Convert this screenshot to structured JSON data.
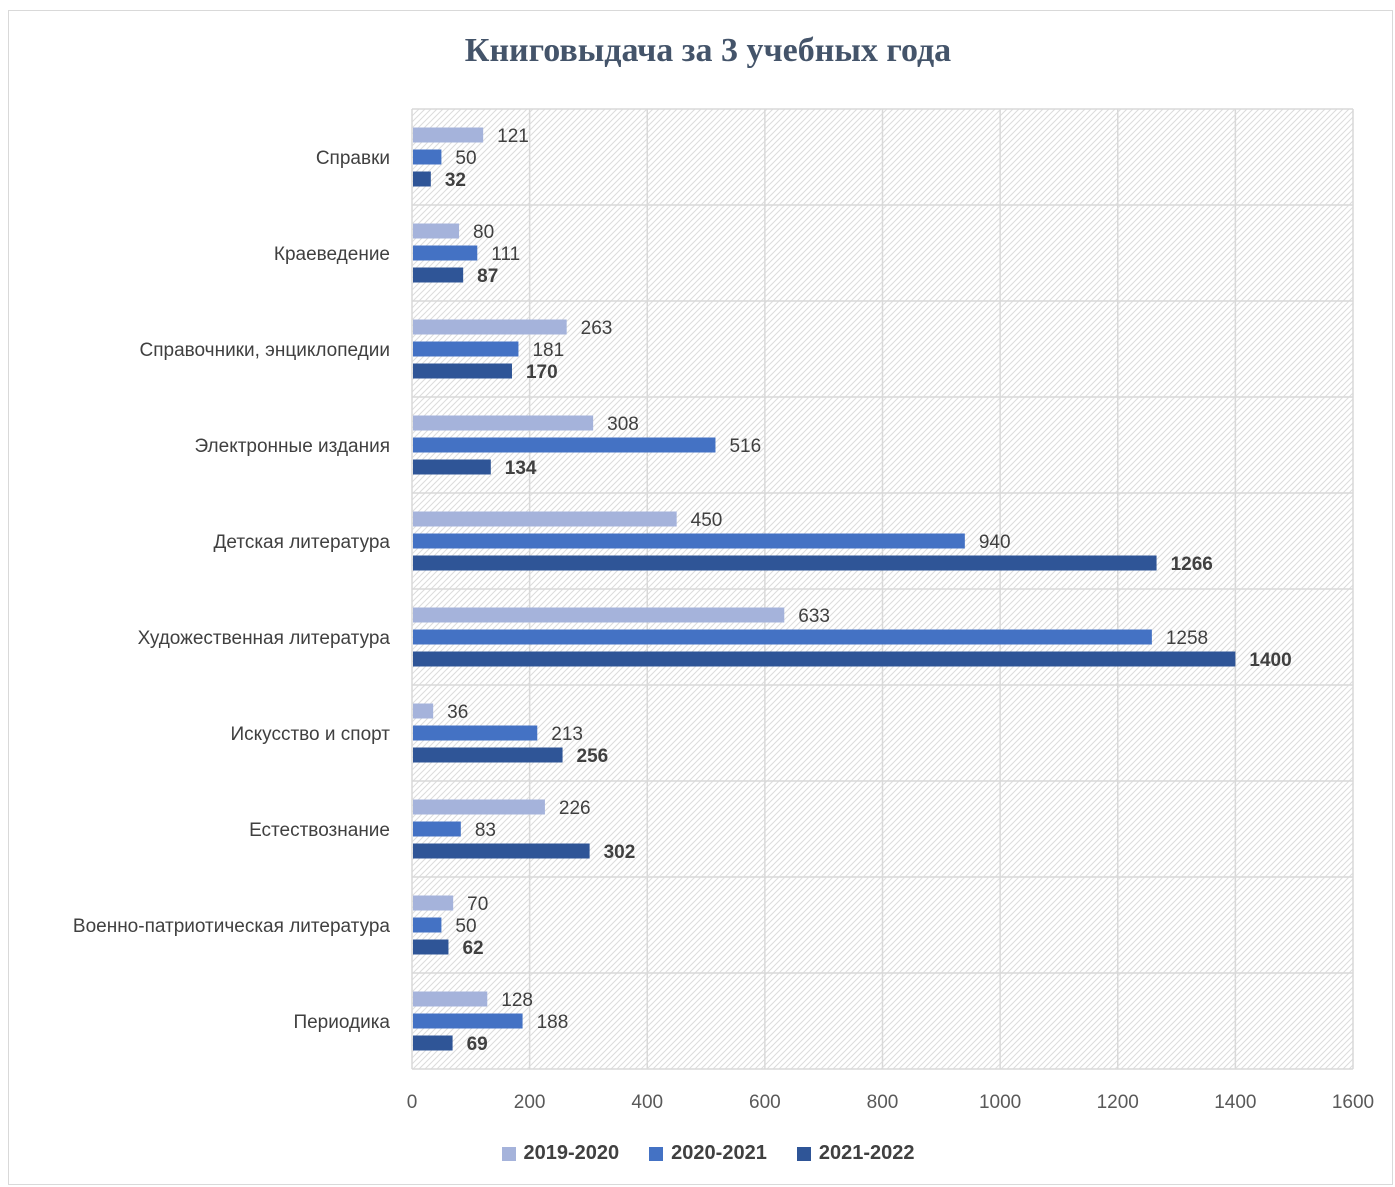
{
  "chart_data": {
    "type": "bar",
    "orientation": "horizontal",
    "title": "Книговыдача за 3 учебных года",
    "categories": [
      "Справки",
      "Краеведение",
      "Справочники, энциклопедии",
      "Электронные издания",
      "Детская литература",
      "Художественная литература",
      "Искусство и спорт",
      "Естествознание",
      "Военно-патриотическая литература",
      "Периодика"
    ],
    "series": [
      {
        "name": "2019-2020",
        "color": "#a5b3db",
        "bold_labels": false,
        "values": [
          121,
          80,
          263,
          308,
          450,
          633,
          36,
          226,
          70,
          128
        ]
      },
      {
        "name": "2020-2021",
        "color": "#4472c4",
        "bold_labels": false,
        "values": [
          50,
          111,
          181,
          516,
          940,
          1258,
          213,
          83,
          50,
          188
        ]
      },
      {
        "name": "2021-2022",
        "color": "#2f5597",
        "bold_labels": true,
        "values": [
          32,
          87,
          170,
          134,
          1266,
          1400,
          256,
          302,
          62,
          69
        ]
      }
    ],
    "xlim": [
      0,
      1600
    ],
    "x_ticks": [
      "0",
      "200",
      "400",
      "600",
      "800",
      "1000",
      "1200",
      "1400",
      "1600"
    ],
    "grid": true,
    "legend_position": "bottom",
    "plot_background": "diagonal hatch"
  }
}
